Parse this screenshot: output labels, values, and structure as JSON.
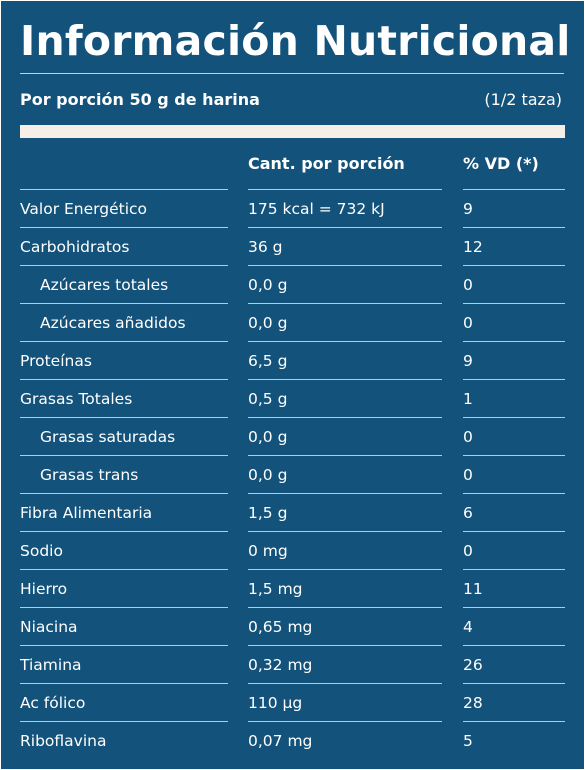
{
  "colors": {
    "background": "#13527a",
    "bar": "#f6efe7",
    "text": "#ffffff"
  },
  "title": "Información Nutricional",
  "serving": {
    "label": "Por porción 50 g de harina",
    "note": "(1/2 taza)"
  },
  "table": {
    "headers": [
      "",
      "Cant. por porción",
      "% VD (*)"
    ],
    "rows": [
      {
        "name": "Valor Energético",
        "amount": "175 kcal = 732 kJ",
        "dv": "9",
        "indent": false
      },
      {
        "name": "Carbohidratos",
        "amount": "36 g",
        "dv": "12",
        "indent": false
      },
      {
        "name": "Azúcares totales",
        "amount": "0,0 g",
        "dv": "0",
        "indent": true
      },
      {
        "name": "Azúcares añadidos",
        "amount": "0,0 g",
        "dv": "0",
        "indent": true
      },
      {
        "name": "Proteínas",
        "amount": "6,5 g",
        "dv": "9",
        "indent": false
      },
      {
        "name": "Grasas Totales",
        "amount": "0,5 g",
        "dv": "1",
        "indent": false
      },
      {
        "name": "Grasas saturadas",
        "amount": "0,0 g",
        "dv": "0",
        "indent": true
      },
      {
        "name": "Grasas trans",
        "amount": "0,0 g",
        "dv": "0",
        "indent": true
      },
      {
        "name": "Fibra Alimentaria",
        "amount": "1,5 g",
        "dv": "6",
        "indent": false
      },
      {
        "name": "Sodio",
        "amount": "0 mg",
        "dv": "0",
        "indent": false
      },
      {
        "name": "Hierro",
        "amount": "1,5 mg",
        "dv": "11",
        "indent": false
      },
      {
        "name": "Niacina",
        "amount": "0,65 mg",
        "dv": "4",
        "indent": false
      },
      {
        "name": "Tiamina",
        "amount": "0,32 mg",
        "dv": "26",
        "indent": false
      },
      {
        "name": "Ac fólico",
        "amount": "110 µg",
        "dv": "28",
        "indent": false
      },
      {
        "name": "Riboflavina",
        "amount": "0,07 mg",
        "dv": "5",
        "indent": false
      }
    ]
  }
}
